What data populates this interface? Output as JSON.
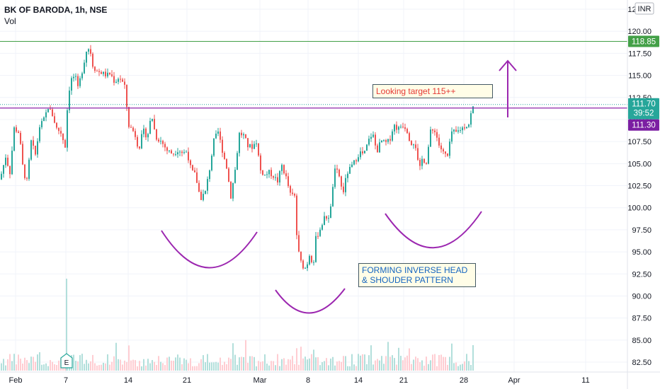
{
  "header": {
    "symbol": "BK OF BARODA, 1h, NSE",
    "volume_label": "Vol"
  },
  "currency": "INR",
  "colors": {
    "up": "#26a69a",
    "down": "#ef5350",
    "grid": "#f0f3fa",
    "resistance": "#8e24aa",
    "target": "#43a047",
    "pattern": "#9c27b0"
  },
  "annotations": {
    "target_note": "Looking target 115++",
    "pattern_note": "FORMING INVERSE HEAD & SHOUDER PATTERN"
  },
  "price_labels": {
    "target": "118.85",
    "last": "111.70",
    "countdown": "39:52",
    "resistance": "111.30"
  },
  "chart_data": {
    "type": "candlestick",
    "title": "BK OF BARODA, 1h, NSE",
    "y_ticks": [
      "122.50",
      "120.00",
      "117.50",
      "115.00",
      "112.50",
      "110.00",
      "107.50",
      "105.00",
      "102.50",
      "100.00",
      "97.50",
      "95.00",
      "92.50",
      "90.00",
      "87.50",
      "85.00",
      "82.50"
    ],
    "x_ticks": [
      "Feb",
      "7",
      "14",
      "21",
      "Mar",
      "8",
      "14",
      "21",
      "28",
      "Apr",
      "11"
    ],
    "ylim": [
      81.5,
      124.5
    ],
    "horizontal_lines": [
      {
        "name": "target",
        "y": 118.85
      },
      {
        "name": "resistance",
        "y": 111.3
      }
    ],
    "price_path": [
      [
        0,
        103.2
      ],
      [
        8,
        105.8
      ],
      [
        14,
        104.0
      ],
      [
        20,
        109.0
      ],
      [
        27,
        108.5
      ],
      [
        33,
        104.0
      ],
      [
        38,
        103.0
      ],
      [
        44,
        107.5
      ],
      [
        50,
        106.0
      ],
      [
        56,
        109.2
      ],
      [
        62,
        110.0
      ],
      [
        68,
        111.4
      ],
      [
        74,
        110.5
      ],
      [
        80,
        109.0
      ],
      [
        86,
        108.5
      ],
      [
        92,
        107.0
      ],
      [
        96,
        112.5
      ],
      [
        100,
        114.5
      ],
      [
        106,
        115.0
      ],
      [
        110,
        113.5
      ],
      [
        116,
        115.5
      ],
      [
        122,
        117.8
      ],
      [
        127,
        118.2
      ],
      [
        130,
        116.3
      ],
      [
        136,
        115.5
      ],
      [
        144,
        115.3
      ],
      [
        150,
        115.0
      ],
      [
        156,
        115.2
      ],
      [
        162,
        114.2
      ],
      [
        168,
        114.8
      ],
      [
        172,
        114.4
      ],
      [
        177,
        113.5
      ],
      [
        181,
        109.4
      ],
      [
        190,
        108.5
      ],
      [
        196,
        106.6
      ],
      [
        202,
        108.8
      ],
      [
        208,
        108.0
      ],
      [
        214,
        110.6
      ],
      [
        220,
        108.0
      ],
      [
        228,
        107.5
      ],
      [
        236,
        106.5
      ],
      [
        244,
        106.1
      ],
      [
        252,
        106.6
      ],
      [
        258,
        106.2
      ],
      [
        264,
        106.4
      ],
      [
        270,
        104.2
      ],
      [
        276,
        103.7
      ],
      [
        283,
        101.0
      ],
      [
        290,
        101.8
      ],
      [
        296,
        104.4
      ],
      [
        302,
        107.6
      ],
      [
        308,
        108.6
      ],
      [
        314,
        106.5
      ],
      [
        320,
        104.6
      ],
      [
        326,
        101.3
      ],
      [
        332,
        104.3
      ],
      [
        338,
        108.4
      ],
      [
        344,
        108.2
      ],
      [
        350,
        107.0
      ],
      [
        356,
        106.9
      ],
      [
        362,
        107.5
      ],
      [
        368,
        104.2
      ],
      [
        374,
        103.7
      ],
      [
        380,
        104.0
      ],
      [
        386,
        103.6
      ],
      [
        392,
        103.0
      ],
      [
        398,
        104.8
      ],
      [
        404,
        103.4
      ],
      [
        410,
        101.5
      ],
      [
        416,
        101.3
      ],
      [
        420,
        95.5
      ],
      [
        426,
        93.5
      ],
      [
        432,
        93.1
      ],
      [
        438,
        95.0
      ],
      [
        442,
        93.2
      ],
      [
        446,
        96.5
      ],
      [
        452,
        97.6
      ],
      [
        458,
        98.8
      ],
      [
        466,
        99.1
      ],
      [
        472,
        104.2
      ],
      [
        478,
        104.0
      ],
      [
        484,
        101.5
      ],
      [
        490,
        103.9
      ],
      [
        496,
        104.6
      ],
      [
        502,
        105.4
      ],
      [
        508,
        106.3
      ],
      [
        514,
        106.0
      ],
      [
        520,
        107.5
      ],
      [
        526,
        108.5
      ],
      [
        532,
        106.3
      ],
      [
        538,
        107.6
      ],
      [
        544,
        107.3
      ],
      [
        550,
        107.6
      ],
      [
        556,
        109.4
      ],
      [
        562,
        108.9
      ],
      [
        568,
        109.4
      ],
      [
        574,
        109.0
      ],
      [
        580,
        107.3
      ],
      [
        586,
        107.5
      ],
      [
        592,
        104.1
      ],
      [
        596,
        105.5
      ],
      [
        602,
        105.2
      ],
      [
        608,
        108.6
      ],
      [
        614,
        108.8
      ],
      [
        620,
        107.1
      ],
      [
        626,
        106.2
      ],
      [
        632,
        105.8
      ],
      [
        638,
        108.6
      ],
      [
        644,
        108.5
      ],
      [
        650,
        108.9
      ],
      [
        656,
        109.2
      ],
      [
        662,
        109.5
      ],
      [
        666,
        111.0
      ],
      [
        670,
        111.7
      ]
    ]
  }
}
